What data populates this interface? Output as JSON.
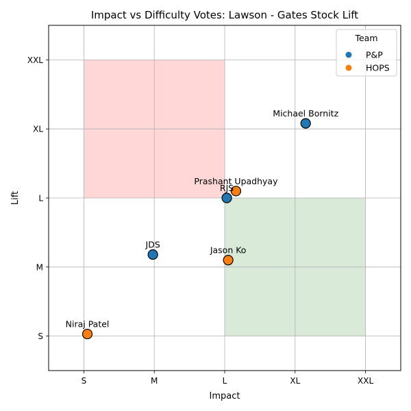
{
  "chart_data": {
    "type": "scatter",
    "title": "Impact vs Difficulty Votes: Lawson - Gates Stock Lift",
    "xlabel": "Impact",
    "ylabel": "Lift",
    "x_ticks": [
      "S",
      "M",
      "L",
      "XL",
      "XXL"
    ],
    "y_ticks": [
      "S",
      "M",
      "L",
      "XL",
      "XXL"
    ],
    "xlim": [
      -0.5,
      4.5
    ],
    "ylim": [
      -0.5,
      4.5
    ],
    "grid": true,
    "legend": {
      "title": "Team",
      "position": "top-right",
      "entries": [
        {
          "name": "P&P",
          "color": "#1f77b4"
        },
        {
          "name": "HOPS",
          "color": "#ff7f0e"
        }
      ]
    },
    "regions": [
      {
        "x": [
          0,
          2
        ],
        "y": [
          2,
          4
        ],
        "color": "#ffd7d7"
      },
      {
        "x": [
          2,
          4
        ],
        "y": [
          0,
          2
        ],
        "color": "#d9ead8"
      }
    ],
    "series": [
      {
        "name": "P&P",
        "color": "#1f77b4",
        "points": [
          {
            "label": "Michael Bornitz",
            "x": 3.15,
            "y": 3.08
          },
          {
            "label": "RJS",
            "x": 2.03,
            "y": 2.0
          },
          {
            "label": "JDS",
            "x": 0.98,
            "y": 1.18
          }
        ]
      },
      {
        "name": "HOPS",
        "color": "#ff7f0e",
        "points": [
          {
            "label": "Prashant Upadhyay",
            "x": 2.16,
            "y": 2.1
          },
          {
            "label": "Jason Ko",
            "x": 2.05,
            "y": 1.1
          },
          {
            "label": "Niraj Patel",
            "x": 0.05,
            "y": 0.03
          }
        ]
      }
    ]
  }
}
